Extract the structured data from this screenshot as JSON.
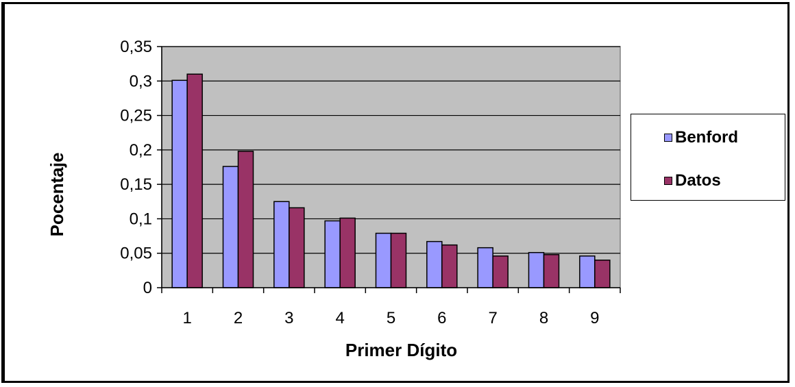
{
  "chart_data": {
    "type": "bar",
    "categories": [
      "1",
      "2",
      "3",
      "4",
      "5",
      "6",
      "7",
      "8",
      "9"
    ],
    "series": [
      {
        "name": "Benford",
        "color": "#9999ff",
        "values": [
          0.301,
          0.176,
          0.125,
          0.097,
          0.079,
          0.067,
          0.058,
          0.051,
          0.046
        ]
      },
      {
        "name": "Datos",
        "color": "#993366",
        "values": [
          0.31,
          0.198,
          0.116,
          0.101,
          0.079,
          0.062,
          0.046,
          0.048,
          0.04
        ]
      }
    ],
    "xlabel": "Primer Dígito",
    "ylabel": "Pocentaje",
    "ylim": [
      0,
      0.35
    ],
    "yticks": [
      {
        "value": 0,
        "label": "0"
      },
      {
        "value": 0.05,
        "label": "0,05"
      },
      {
        "value": 0.1,
        "label": "0,1"
      },
      {
        "value": 0.15,
        "label": "0,15"
      },
      {
        "value": 0.2,
        "label": "0,2"
      },
      {
        "value": 0.25,
        "label": "0,25"
      },
      {
        "value": 0.3,
        "label": "0,3"
      },
      {
        "value": 0.35,
        "label": "0,35"
      }
    ],
    "grid": true,
    "plot_background": "#c0c0c0",
    "legend_position": "right"
  }
}
